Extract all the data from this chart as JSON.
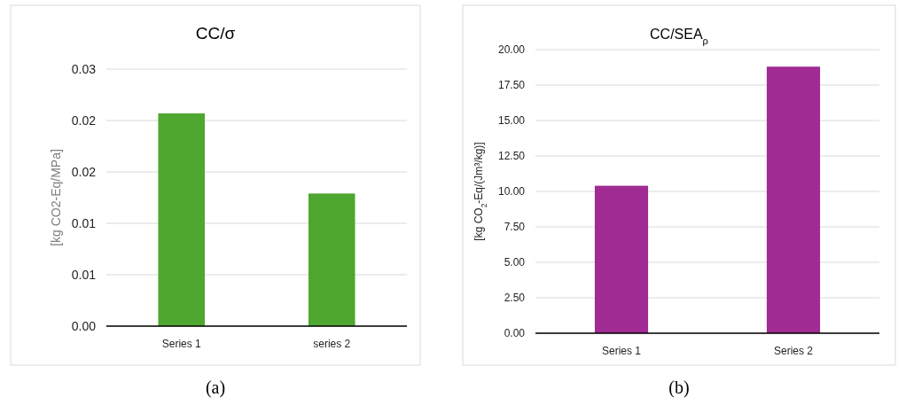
{
  "chart_data": [
    {
      "type": "bar",
      "title": "CC/σ",
      "ylabel": "[kg CO2-Eq/MPa]",
      "categories": [
        "Series 1",
        "series 2"
      ],
      "values": [
        0.0207,
        0.0129
      ],
      "color": "#4ea72e",
      "ylim": [
        0,
        0.025
      ],
      "yticks": [
        {
          "value": 0,
          "label": "0.00"
        },
        {
          "value": 0.005,
          "label": "0.01"
        },
        {
          "value": 0.01,
          "label": "0.01"
        },
        {
          "value": 0.015,
          "label": "0.02"
        },
        {
          "value": 0.02,
          "label": "0.02"
        },
        {
          "value": 0.025,
          "label": "0.03"
        }
      ],
      "grid": "y",
      "annotations": [
        "(a)"
      ]
    },
    {
      "type": "bar",
      "title": "CC/SEA$_{ρ}$",
      "ylabel": "[kg CO$_{2}$-Eq/(Jm³/kg)]",
      "categories": [
        "Series 1",
        "Series 2"
      ],
      "values": [
        10.4,
        18.8
      ],
      "color": "#a02b93",
      "ylim": [
        0,
        20
      ],
      "yticks": [
        {
          "value": 0,
          "label": "0.00"
        },
        {
          "value": 2.5,
          "label": "2.50"
        },
        {
          "value": 5,
          "label": "5.00"
        },
        {
          "value": 7.5,
          "label": "7.50"
        },
        {
          "value": 10,
          "label": "10.00"
        },
        {
          "value": 12.5,
          "label": "12.50"
        },
        {
          "value": 15,
          "label": "15.00"
        },
        {
          "value": 17.5,
          "label": "17.50"
        },
        {
          "value": 20,
          "label": "20.00"
        }
      ],
      "grid": "y",
      "annotations": [
        "(b)"
      ]
    }
  ]
}
